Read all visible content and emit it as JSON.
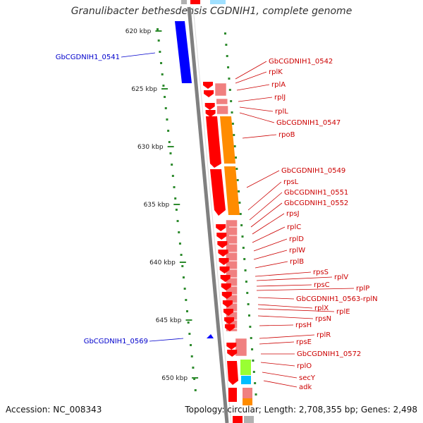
{
  "title": "Granulibacter bethesdensis CGDNIH1, complete genome",
  "footer": {
    "accession": "Accession: NC_008343",
    "topology": "Topology: circular; Length: 2,708,355 bp; Genes: 2,498"
  },
  "kbp_labels": [
    "620 kbp",
    "625 kbp",
    "630 kbp",
    "635 kbp",
    "640 kbp",
    "645 kbp",
    "650 kbp"
  ],
  "left_genes": [
    "GbCGDNIH1_0541",
    "GbCGDNIH1_0569"
  ],
  "right_genes": [
    "GbCGDNIH1_0542",
    "rplK",
    "rplA",
    "rplJ",
    "rplL",
    "GbCGDNIH1_0547",
    "rpoB",
    "GbCGDNIH1_0549",
    "rpsL",
    "GbCGDNIH1_0551",
    "GbCGDNIH1_0552",
    "rpsJ",
    "rplC",
    "rplD",
    "rplW",
    "rplB",
    "rpsS",
    "rplV",
    "rpsC",
    "rplP",
    "GbCGDNIH1_0563-rplN",
    "rplX",
    "rplE",
    "rpsN",
    "rpsH",
    "rplR",
    "rpsE",
    "GbCGDNIH1_0572",
    "rplO",
    "secY",
    "adk"
  ],
  "colors": {
    "gene_red": "#ff0000",
    "gene_blue": "#0000ff",
    "pink": "#f08080",
    "orange": "#ff8c00",
    "lime": "#99ff33",
    "cyan": "#00bfff",
    "dots": "#2e8b2e",
    "backbone": "#808080",
    "label_red": "#cc0000",
    "label_blue": "#0000cc"
  }
}
